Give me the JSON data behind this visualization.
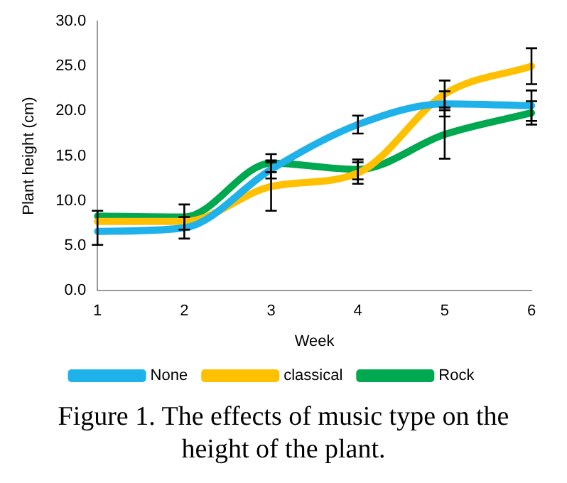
{
  "chart_data": {
    "type": "line",
    "title": "Figure 1. The effects of music type on the height of the plant.",
    "xlabel": "Week",
    "ylabel": "Plant height (cm)",
    "categories": [
      "1",
      "2",
      "3",
      "4",
      "5",
      "6"
    ],
    "series": [
      {
        "name": "None",
        "color": "#1fb1ea",
        "values": [
          6.6,
          7.0,
          13.5,
          18.5,
          20.8,
          20.6
        ],
        "errors": [
          [
            5.1,
            8.9
          ],
          1.2,
          1.0,
          1.0,
          1.4,
          1.7
        ]
      },
      {
        "name": "classical",
        "color": "#ffc000",
        "values": [
          7.7,
          7.7,
          11.6,
          13.1,
          21.9,
          25.0
        ],
        "errors": [
          null,
          null,
          2.7,
          1.2,
          1.5,
          2.0
        ]
      },
      {
        "name": "Rock",
        "color": "#00a84f",
        "values": [
          8.3,
          8.2,
          14.2,
          13.5,
          17.4,
          19.8
        ],
        "errors": [
          null,
          1.4,
          1.0,
          1.1,
          2.7,
          1.3
        ]
      }
    ],
    "ylim": [
      0,
      30
    ],
    "yticks": [
      {
        "value": 0,
        "label": "0.0"
      },
      {
        "value": 5,
        "label": "5.0"
      },
      {
        "value": 10,
        "label": "10.0"
      },
      {
        "value": 15,
        "label": "15.0"
      },
      {
        "value": 20,
        "label": "20.0"
      },
      {
        "value": 25,
        "label": "25.0"
      },
      {
        "value": 30,
        "label": "30.0"
      }
    ],
    "grid": false,
    "legend": "bottom",
    "marker": "none",
    "line_style": "solid"
  }
}
